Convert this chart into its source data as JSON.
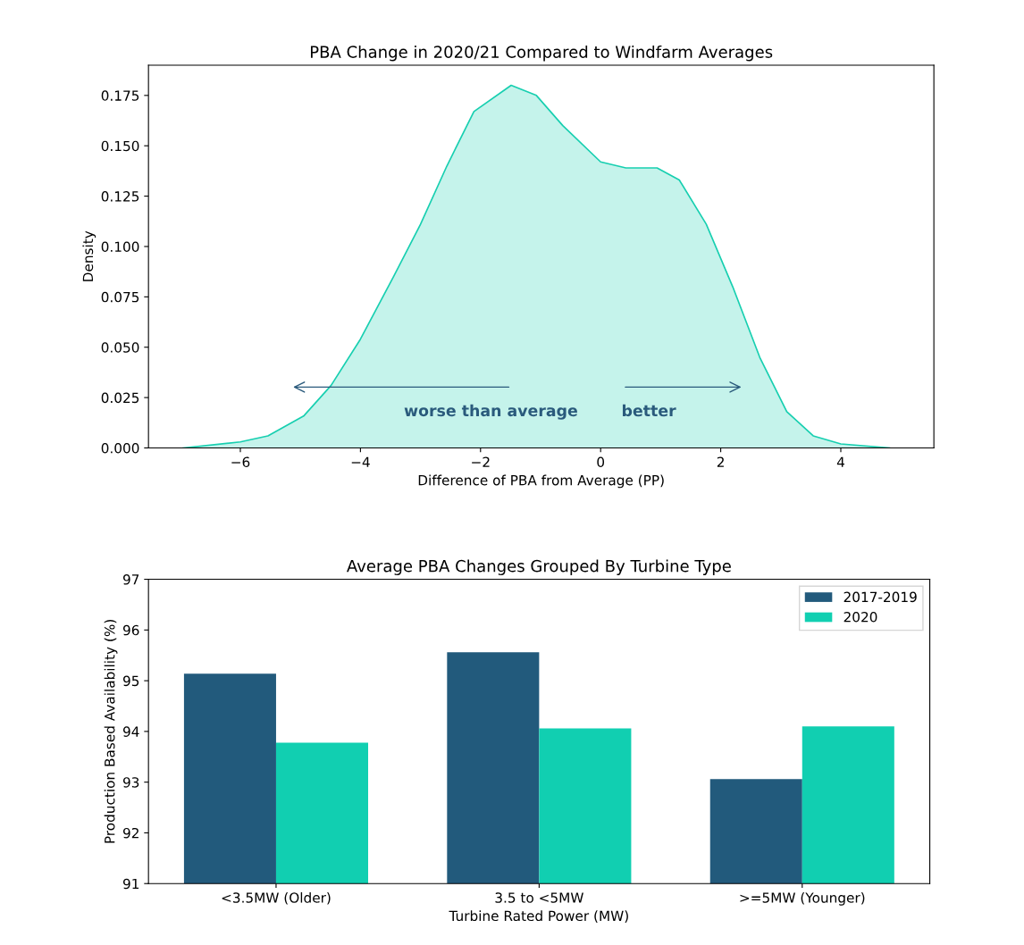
{
  "chart_data": [
    {
      "type": "area",
      "title": "PBA Change in 2020/21 Compared to Windfarm Averages",
      "xlabel": "Difference of PBA from Average (PP)",
      "ylabel": "Density",
      "series": [
        {
          "color": "#17cfb0",
          "x": [
            -6.95,
            -6.0,
            -5.54,
            -4.94,
            -4.49,
            -4.0,
            -3.45,
            -3.0,
            -2.56,
            -2.11,
            -1.49,
            -1.07,
            -0.63,
            0.0,
            0.42,
            0.94,
            1.31,
            1.76,
            2.2,
            2.65,
            3.1,
            3.54,
            4.0,
            4.81
          ],
          "values": [
            0.0,
            0.003,
            0.006,
            0.016,
            0.031,
            0.054,
            0.085,
            0.111,
            0.14,
            0.167,
            0.18,
            0.175,
            0.16,
            0.142,
            0.139,
            0.139,
            0.133,
            0.111,
            0.08,
            0.045,
            0.018,
            0.006,
            0.002,
            0.0
          ]
        }
      ],
      "xlim": [
        -7.53,
        5.55
      ],
      "ylim": [
        0,
        0.19
      ],
      "xticks": [
        {
          "value": -6,
          "label": "−6"
        },
        {
          "value": -4,
          "label": "−4"
        },
        {
          "value": -2,
          "label": "−2"
        },
        0,
        2,
        4
      ],
      "yticks": [
        {
          "value": 0,
          "label": "0.000"
        },
        {
          "value": 0.025,
          "label": "0.025"
        },
        {
          "value": 0.05,
          "label": "0.050"
        },
        {
          "value": 0.075,
          "label": "0.075"
        },
        {
          "value": 0.1,
          "label": "0.100"
        },
        {
          "value": 0.125,
          "label": "0.125"
        },
        {
          "value": 0.15,
          "label": "0.150"
        },
        {
          "value": 0.175,
          "label": "0.175"
        }
      ],
      "annotations": [
        "worse than average",
        "better"
      ],
      "grid": false,
      "legend": false
    },
    {
      "type": "bar",
      "title": "Average PBA Changes Grouped By Turbine Type",
      "xlabel": "Turbine Rated Power (MW)",
      "ylabel": "Production Based Availability (%)",
      "categories": [
        "<3.5MW (Older)",
        "3.5 to <5MW",
        ">=5MW (Younger)"
      ],
      "series": [
        {
          "name": "2017-2019",
          "color": "#225a7c",
          "values": [
            95.14,
            95.56,
            93.06
          ]
        },
        {
          "name": "2020",
          "color": "#11cfb1",
          "values": [
            93.78,
            94.06,
            94.1
          ]
        }
      ],
      "ylim": [
        91,
        97
      ],
      "yticks": [
        91,
        92,
        93,
        94,
        95,
        96,
        97
      ],
      "grid": false,
      "legend": "top right"
    }
  ]
}
